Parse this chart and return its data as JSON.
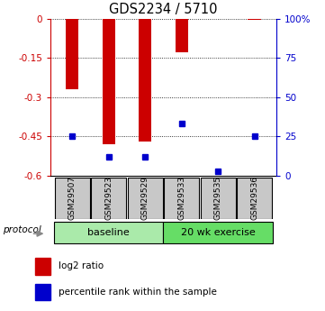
{
  "title": "GDS2234 / 5710",
  "samples": [
    "GSM29507",
    "GSM29523",
    "GSM29529",
    "GSM29533",
    "GSM29535",
    "GSM29536"
  ],
  "log2_ratio": [
    -0.27,
    -0.48,
    -0.47,
    -0.13,
    -0.002,
    -0.005
  ],
  "percentile_rank": [
    25,
    12,
    12,
    33,
    3,
    25
  ],
  "groups": [
    {
      "label": "baseline",
      "indices": [
        0,
        1,
        2
      ],
      "color": "#aaeaaa"
    },
    {
      "label": "20 wk exercise",
      "indices": [
        3,
        4,
        5
      ],
      "color": "#66dd66"
    }
  ],
  "ylim_left": [
    -0.6,
    0.0
  ],
  "ylim_right": [
    0,
    100
  ],
  "yticks_left": [
    0,
    -0.15,
    -0.3,
    -0.45,
    -0.6
  ],
  "yticks_right": [
    100,
    75,
    50,
    25,
    0
  ],
  "bar_color": "#cc0000",
  "dot_color": "#0000cc",
  "left_axis_color": "#cc0000",
  "right_axis_color": "#0000cc",
  "protocol_label": "protocol",
  "legend_log2": "log2 ratio",
  "legend_pct": "percentile rank within the sample",
  "bar_width": 0.35
}
